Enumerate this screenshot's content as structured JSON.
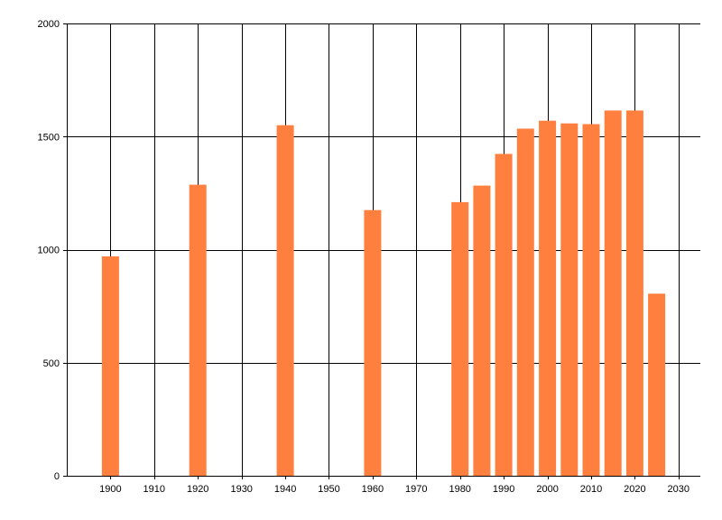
{
  "chart_data": {
    "type": "bar",
    "title": "",
    "xlabel": "",
    "ylabel": "",
    "x": [
      1900,
      1920,
      1940,
      1960,
      1980,
      1985,
      1990,
      1995,
      2000,
      2005,
      2010,
      2015,
      2020,
      2025
    ],
    "values": [
      970,
      1287,
      1550,
      1175,
      1210,
      1283,
      1423,
      1535,
      1570,
      1558,
      1555,
      1615,
      1615,
      805
    ],
    "xlim": [
      1890,
      2035
    ],
    "ylim": [
      0,
      2000
    ],
    "x_ticks": [
      1900,
      1910,
      1920,
      1930,
      1940,
      1950,
      1960,
      1970,
      1980,
      1990,
      2000,
      2010,
      2020,
      2030
    ],
    "y_ticks": [
      0,
      500,
      1000,
      1500,
      2000
    ],
    "bar_color": "#ff7f3f",
    "grid": true,
    "legend": "none"
  }
}
